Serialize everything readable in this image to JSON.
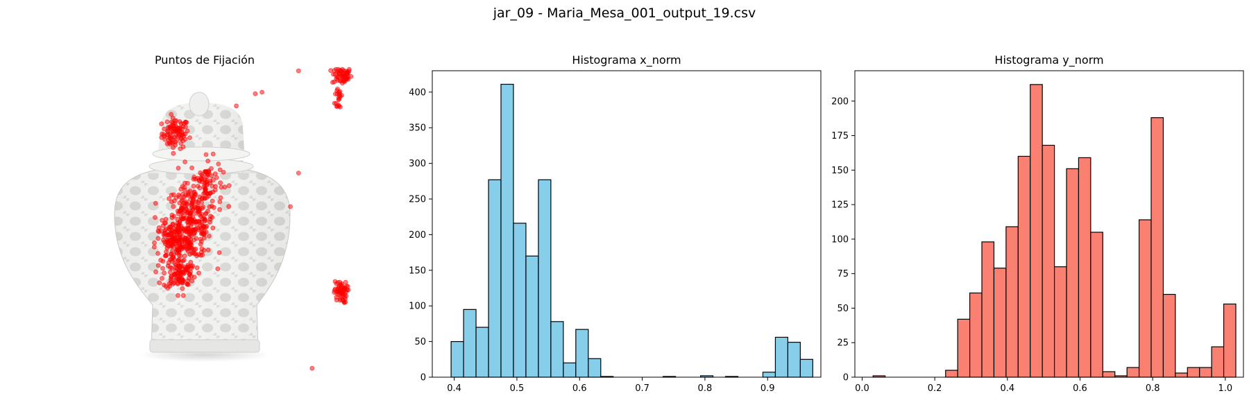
{
  "suptitle": "jar_09 - Maria_Mesa_001_output_19.csv",
  "panels": {
    "fixation_title": "Puntos de Fijación",
    "hist_x_title": "Histograma x_norm",
    "hist_y_title": "Histograma y_norm"
  },
  "colors": {
    "hist_x": "#87ceeb",
    "hist_y": "#fa8072",
    "fixation": "#ff0000",
    "edge": "#000000"
  },
  "chart_data": [
    {
      "type": "scatter",
      "title": "Puntos de Fijación",
      "background_image": "white porcelain jar with lid (reticulated pattern)",
      "axes_visible": false,
      "xlim": [
        0,
        1
      ],
      "ylim": [
        0,
        1
      ],
      "clusters": [
        {
          "name": "lid-top",
          "cx": 0.315,
          "cy": 0.79,
          "sx": 0.025,
          "sy": 0.025,
          "n": 90
        },
        {
          "name": "upper-right-a",
          "cx": 0.93,
          "cy": 0.98,
          "sx": 0.018,
          "sy": 0.015,
          "n": 55
        },
        {
          "name": "upper-right-b",
          "cx": 0.92,
          "cy": 0.91,
          "sx": 0.008,
          "sy": 0.025,
          "n": 20
        },
        {
          "name": "neck",
          "cx": 0.43,
          "cy": 0.63,
          "sx": 0.03,
          "sy": 0.04,
          "n": 70
        },
        {
          "name": "body-upper",
          "cx": 0.37,
          "cy": 0.5,
          "sx": 0.045,
          "sy": 0.06,
          "n": 300
        },
        {
          "name": "body-mid",
          "cx": 0.31,
          "cy": 0.43,
          "sx": 0.035,
          "sy": 0.035,
          "n": 120
        },
        {
          "name": "body-lower",
          "cx": 0.33,
          "cy": 0.33,
          "sx": 0.03,
          "sy": 0.025,
          "n": 100
        },
        {
          "name": "lower-right",
          "cx": 0.925,
          "cy": 0.27,
          "sx": 0.012,
          "sy": 0.018,
          "n": 60
        }
      ],
      "isolated_points": [
        {
          "x": 0.77,
          "y": 0.995
        },
        {
          "x": 0.61,
          "y": 0.92
        },
        {
          "x": 0.635,
          "y": 0.925
        },
        {
          "x": 0.54,
          "y": 0.88
        },
        {
          "x": 0.77,
          "y": 0.66
        },
        {
          "x": 0.74,
          "y": 0.55
        },
        {
          "x": 0.82,
          "y": 0.02
        }
      ]
    },
    {
      "type": "bar",
      "title": "Histograma x_norm",
      "xlim": [
        0.365,
        0.985
      ],
      "ylim": [
        0,
        430
      ],
      "bin_start": 0.395,
      "bin_width": 0.0199,
      "values": [
        50,
        95,
        70,
        277,
        411,
        216,
        170,
        277,
        78,
        20,
        67,
        26,
        1,
        0,
        0,
        0,
        0,
        1,
        0,
        0,
        2,
        0,
        1,
        0,
        0,
        7,
        56,
        49,
        25
      ],
      "xticks": [
        "0.4",
        "0.5",
        "0.6",
        "0.7",
        "0.8",
        "0.9"
      ],
      "yticks": [
        "0",
        "50",
        "100",
        "150",
        "200",
        "250",
        "300",
        "350",
        "400"
      ]
    },
    {
      "type": "bar",
      "title": "Histograma y_norm",
      "xlim": [
        -0.02,
        1.05
      ],
      "ylim": [
        0,
        222
      ],
      "bin_start": 0.03,
      "bin_width": 0.0333,
      "values": [
        1,
        0,
        0,
        0,
        0,
        0,
        5,
        42,
        61,
        98,
        79,
        109,
        160,
        212,
        168,
        80,
        151,
        159,
        105,
        4,
        1,
        7,
        114,
        188,
        60,
        3,
        7,
        7,
        22,
        53
      ],
      "xticks": [
        "0.0",
        "0.2",
        "0.4",
        "0.6",
        "0.8",
        "1.0"
      ],
      "yticks": [
        "0",
        "25",
        "50",
        "75",
        "100",
        "125",
        "150",
        "175",
        "200"
      ]
    }
  ]
}
